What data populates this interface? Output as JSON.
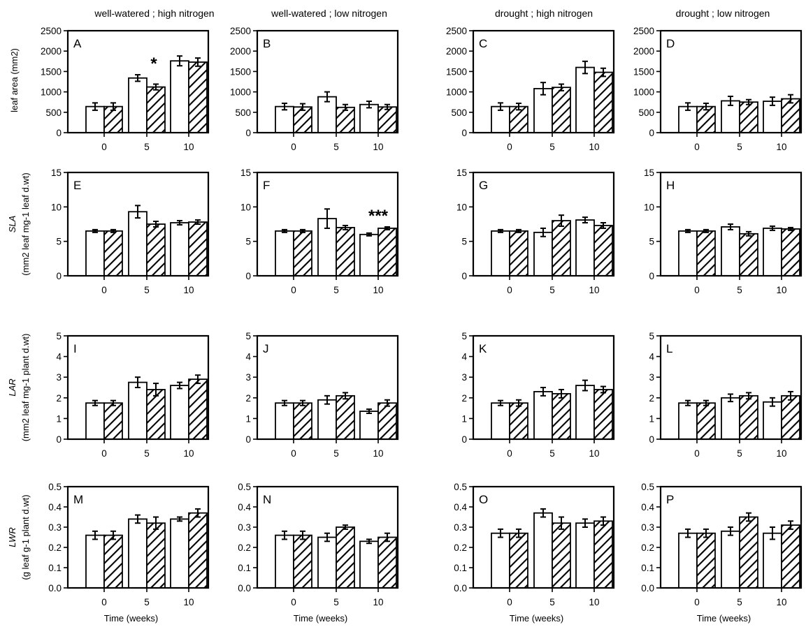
{
  "column_titles": [
    "well-watered ; high nitrogen",
    "well-watered ; low nitrogen",
    "drought ; high nitrogen",
    "drought ; low nitrogen"
  ],
  "row_ylabels": [
    [
      "leaf area (mm2)"
    ],
    [
      "SLA",
      "(mm2 leaf mg-1 leaf d.wt)"
    ],
    [
      "LAR",
      "(mm2 leaf mg-1 plant d.wt)"
    ],
    [
      "LWR",
      "(g leaf g-1 plant d.wt)"
    ]
  ],
  "x_axis_label": "Time (weeks)",
  "colors": {
    "bar_edge": "#000000",
    "bar_fill": "#ffffff",
    "hatch": "#000000"
  },
  "chart_data": [
    {
      "panel": "A",
      "type": "bar",
      "categories": [
        "0",
        "5",
        "10"
      ],
      "ylim": [
        0,
        2500
      ],
      "yticks": [
        "0",
        "500",
        "1000",
        "1500",
        "2000",
        "2500"
      ],
      "series": [
        {
          "values": [
            640,
            1340,
            1760
          ],
          "errors": [
            90,
            80,
            120
          ]
        },
        {
          "values": [
            640,
            1120,
            1730
          ],
          "errors": [
            90,
            70,
            100
          ]
        }
      ],
      "annotations": [
        {
          "text": "*",
          "category": "5"
        }
      ]
    },
    {
      "panel": "B",
      "type": "bar",
      "categories": [
        "0",
        "5",
        "10"
      ],
      "ylim": [
        0,
        2500
      ],
      "yticks": [
        "0",
        "500",
        "1000",
        "1500",
        "2000",
        "2500"
      ],
      "series": [
        {
          "values": [
            640,
            880,
            690
          ],
          "errors": [
            80,
            120,
            80
          ]
        },
        {
          "values": [
            630,
            620,
            630
          ],
          "errors": [
            80,
            70,
            60
          ]
        }
      ]
    },
    {
      "panel": "C",
      "type": "bar",
      "categories": [
        "0",
        "5",
        "10"
      ],
      "ylim": [
        0,
        2500
      ],
      "yticks": [
        "0",
        "500",
        "1000",
        "1500",
        "2000",
        "2500"
      ],
      "series": [
        {
          "values": [
            640,
            1080,
            1600
          ],
          "errors": [
            90,
            150,
            150
          ]
        },
        {
          "values": [
            640,
            1110,
            1480
          ],
          "errors": [
            80,
            80,
            100
          ]
        }
      ]
    },
    {
      "panel": "D",
      "type": "bar",
      "categories": [
        "0",
        "5",
        "10"
      ],
      "ylim": [
        0,
        2500
      ],
      "yticks": [
        "0",
        "500",
        "1000",
        "1500",
        "2000",
        "2500"
      ],
      "series": [
        {
          "values": [
            640,
            780,
            770
          ],
          "errors": [
            90,
            110,
            100
          ]
        },
        {
          "values": [
            640,
            750,
            830
          ],
          "errors": [
            80,
            60,
            100
          ]
        }
      ]
    },
    {
      "panel": "E",
      "type": "bar",
      "categories": [
        "0",
        "5",
        "10"
      ],
      "ylim": [
        0,
        15
      ],
      "yticks": [
        "0",
        "5",
        "10",
        "15"
      ],
      "series": [
        {
          "values": [
            6.5,
            9.3,
            7.7
          ],
          "errors": [
            0.2,
            0.9,
            0.3
          ]
        },
        {
          "values": [
            6.5,
            7.5,
            7.8
          ],
          "errors": [
            0.2,
            0.4,
            0.3
          ]
        }
      ]
    },
    {
      "panel": "F",
      "type": "bar",
      "categories": [
        "0",
        "5",
        "10"
      ],
      "ylim": [
        0,
        15
      ],
      "yticks": [
        "0",
        "5",
        "10",
        "15"
      ],
      "series": [
        {
          "values": [
            6.5,
            8.3,
            6.0
          ],
          "errors": [
            0.2,
            1.4,
            0.2
          ]
        },
        {
          "values": [
            6.5,
            7.0,
            6.9
          ],
          "errors": [
            0.2,
            0.3,
            0.2
          ]
        }
      ],
      "annotations": [
        {
          "text": "***",
          "category": "10"
        }
      ]
    },
    {
      "panel": "G",
      "type": "bar",
      "categories": [
        "0",
        "5",
        "10"
      ],
      "ylim": [
        0,
        15
      ],
      "yticks": [
        "0",
        "5",
        "10",
        "15"
      ],
      "series": [
        {
          "values": [
            6.5,
            6.3,
            8.1
          ],
          "errors": [
            0.2,
            0.6,
            0.4
          ]
        },
        {
          "values": [
            6.5,
            8.0,
            7.3
          ],
          "errors": [
            0.2,
            0.8,
            0.4
          ]
        }
      ]
    },
    {
      "panel": "H",
      "type": "bar",
      "categories": [
        "0",
        "5",
        "10"
      ],
      "ylim": [
        0,
        15
      ],
      "yticks": [
        "0",
        "5",
        "10",
        "15"
      ],
      "series": [
        {
          "values": [
            6.5,
            7.1,
            6.9
          ],
          "errors": [
            0.2,
            0.4,
            0.3
          ]
        },
        {
          "values": [
            6.5,
            6.1,
            6.8
          ],
          "errors": [
            0.2,
            0.3,
            0.2
          ]
        }
      ]
    },
    {
      "panel": "I",
      "type": "bar",
      "categories": [
        "0",
        "5",
        "10"
      ],
      "ylim": [
        0,
        5
      ],
      "yticks": [
        "0",
        "1",
        "2",
        "3",
        "4",
        "5"
      ],
      "series": [
        {
          "values": [
            1.75,
            2.75,
            2.6
          ],
          "errors": [
            0.12,
            0.25,
            0.15
          ]
        },
        {
          "values": [
            1.75,
            2.4,
            2.9
          ],
          "errors": [
            0.12,
            0.3,
            0.2
          ]
        }
      ]
    },
    {
      "panel": "J",
      "type": "bar",
      "categories": [
        "0",
        "5",
        "10"
      ],
      "ylim": [
        0,
        5
      ],
      "yticks": [
        "0",
        "1",
        "2",
        "3",
        "4",
        "5"
      ],
      "series": [
        {
          "values": [
            1.75,
            1.9,
            1.35
          ],
          "errors": [
            0.12,
            0.2,
            0.1
          ]
        },
        {
          "values": [
            1.75,
            2.1,
            1.75
          ],
          "errors": [
            0.12,
            0.15,
            0.15
          ]
        }
      ]
    },
    {
      "panel": "K",
      "type": "bar",
      "categories": [
        "0",
        "5",
        "10"
      ],
      "ylim": [
        0,
        5
      ],
      "yticks": [
        "0",
        "1",
        "2",
        "3",
        "4",
        "5"
      ],
      "series": [
        {
          "values": [
            1.75,
            2.3,
            2.6
          ],
          "errors": [
            0.12,
            0.2,
            0.25
          ]
        },
        {
          "values": [
            1.75,
            2.2,
            2.4
          ],
          "errors": [
            0.15,
            0.2,
            0.15
          ]
        }
      ]
    },
    {
      "panel": "L",
      "type": "bar",
      "categories": [
        "0",
        "5",
        "10"
      ],
      "ylim": [
        0,
        5
      ],
      "yticks": [
        "0",
        "1",
        "2",
        "3",
        "4",
        "5"
      ],
      "series": [
        {
          "values": [
            1.75,
            2.0,
            1.8
          ],
          "errors": [
            0.12,
            0.18,
            0.2
          ]
        },
        {
          "values": [
            1.75,
            2.1,
            2.1
          ],
          "errors": [
            0.12,
            0.15,
            0.2
          ]
        }
      ]
    },
    {
      "panel": "M",
      "type": "bar",
      "categories": [
        "0",
        "5",
        "10"
      ],
      "ylim": [
        0,
        0.5
      ],
      "yticks": [
        "0.0",
        "0.1",
        "0.2",
        "0.3",
        "0.4",
        "0.5"
      ],
      "series": [
        {
          "values": [
            0.26,
            0.34,
            0.34
          ],
          "errors": [
            0.02,
            0.02,
            0.01
          ]
        },
        {
          "values": [
            0.26,
            0.32,
            0.37
          ],
          "errors": [
            0.02,
            0.03,
            0.02
          ]
        }
      ]
    },
    {
      "panel": "N",
      "type": "bar",
      "categories": [
        "0",
        "5",
        "10"
      ],
      "ylim": [
        0,
        0.5
      ],
      "yticks": [
        "0.0",
        "0.1",
        "0.2",
        "0.3",
        "0.4",
        "0.5"
      ],
      "series": [
        {
          "values": [
            0.26,
            0.25,
            0.23
          ],
          "errors": [
            0.02,
            0.02,
            0.01
          ]
        },
        {
          "values": [
            0.26,
            0.3,
            0.25
          ],
          "errors": [
            0.02,
            0.01,
            0.02
          ]
        }
      ]
    },
    {
      "panel": "O",
      "type": "bar",
      "categories": [
        "0",
        "5",
        "10"
      ],
      "ylim": [
        0,
        0.5
      ],
      "yticks": [
        "0.0",
        "0.1",
        "0.2",
        "0.3",
        "0.4",
        "0.5"
      ],
      "series": [
        {
          "values": [
            0.27,
            0.37,
            0.32
          ],
          "errors": [
            0.02,
            0.02,
            0.02
          ]
        },
        {
          "values": [
            0.27,
            0.32,
            0.33
          ],
          "errors": [
            0.02,
            0.03,
            0.02
          ]
        }
      ]
    },
    {
      "panel": "P",
      "type": "bar",
      "categories": [
        "0",
        "5",
        "10"
      ],
      "ylim": [
        0,
        0.5
      ],
      "yticks": [
        "0.0",
        "0.1",
        "0.2",
        "0.3",
        "0.4",
        "0.5"
      ],
      "series": [
        {
          "values": [
            0.27,
            0.28,
            0.27
          ],
          "errors": [
            0.02,
            0.02,
            0.03
          ]
        },
        {
          "values": [
            0.27,
            0.35,
            0.31
          ],
          "errors": [
            0.02,
            0.02,
            0.02
          ]
        }
      ]
    }
  ]
}
